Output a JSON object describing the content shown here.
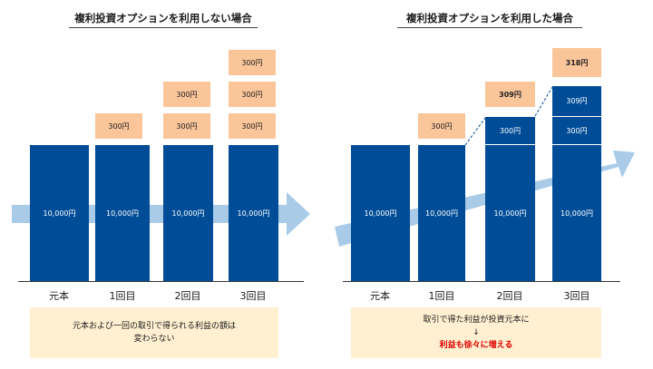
{
  "left": {
    "title": "複利投資オプションを利用しない場合",
    "base_label": "10,000円",
    "peach_label": "300円",
    "categories": [
      "元本",
      "1回目",
      "2回目",
      "3回目"
    ],
    "note_lines": [
      "元本および一回の取引で得られる利益の額は",
      "変わらない"
    ]
  },
  "right": {
    "title": "複利投資オプションを利用した場合",
    "base_label": "10,000円",
    "seg_300": "300円",
    "seg_309": "309円",
    "peach_300": "300円",
    "peach_309": "309円",
    "peach_318": "318円",
    "categories": [
      "元本",
      "1回目",
      "2回目",
      "3回目"
    ],
    "note_line1": "取引で得た利益が投資元本に",
    "note_arrow": "↓",
    "note_line2": "利益も徐々に増える"
  },
  "colors": {
    "bar": "#004c97",
    "peach": "#fac599",
    "arrow": "#a9cbe8",
    "note_bg": "#fff0d1",
    "highlight": "#e00000"
  }
}
